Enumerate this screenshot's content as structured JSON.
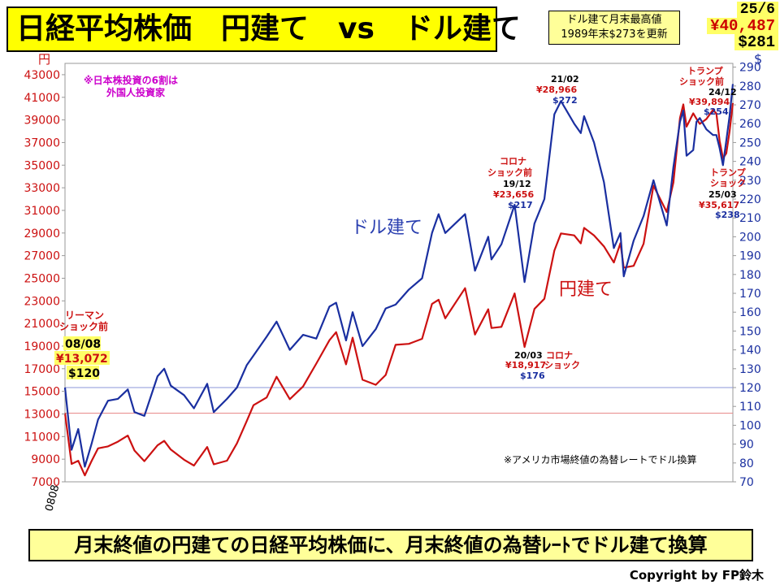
{
  "header": {
    "title": "日経平均株価　円建て　vs　ドル建て",
    "note_line1": "ドル建て月末最高値",
    "note_line2": "1989年末$273を更新",
    "latest_month": "25/6",
    "latest_yen": "¥40,487",
    "latest_usd": "$281"
  },
  "footer": {
    "caption": "月末終値の円建ての日経平均株価に、月末終値の為替ﾚｰﾄでドル建て換算",
    "copyright": "Copyright by FP鈴木"
  },
  "colors": {
    "yen": "#cc1111",
    "usd": "#1a2fa0",
    "ref_yen": "#e88a8a",
    "ref_usd": "#8b95d8"
  },
  "chart_data": {
    "type": "line",
    "title": "日経平均株価　円建て　vs　ドル建て",
    "y_left_unit": "円",
    "y_right_unit": "$",
    "ylim_left": [
      7000,
      44000
    ],
    "ylim_right": [
      70,
      292
    ],
    "y_left_ticks": [
      7000,
      9000,
      11000,
      13000,
      15000,
      17000,
      19000,
      21000,
      23000,
      25000,
      27000,
      29000,
      31000,
      33000,
      35000,
      37000,
      39000,
      41000,
      43000
    ],
    "y_right_ticks": [
      70,
      80,
      90,
      100,
      110,
      120,
      130,
      140,
      150,
      160,
      170,
      180,
      190,
      200,
      210,
      220,
      230,
      240,
      250,
      260,
      270,
      280,
      290
    ],
    "x_tick_label": "0808",
    "x_range": [
      "2008-08",
      "2025-06"
    ],
    "grid": false,
    "series": [
      {
        "name": "円建て",
        "axis": "left",
        "points": [
          [
            "2008-08",
            13072
          ],
          [
            "2008-10",
            8577
          ],
          [
            "2008-12",
            8860
          ],
          [
            "2009-02",
            7568
          ],
          [
            "2009-04",
            8828
          ],
          [
            "2009-06",
            9958
          ],
          [
            "2009-09",
            10134
          ],
          [
            "2009-12",
            10546
          ],
          [
            "2010-03",
            11090
          ],
          [
            "2010-05",
            9768
          ],
          [
            "2010-08",
            8824
          ],
          [
            "2010-12",
            10229
          ],
          [
            "2011-02",
            10624
          ],
          [
            "2011-04",
            9850
          ],
          [
            "2011-08",
            8955
          ],
          [
            "2011-11",
            8435
          ],
          [
            "2012-03",
            10084
          ],
          [
            "2012-05",
            8543
          ],
          [
            "2012-09",
            8870
          ],
          [
            "2012-12",
            10395
          ],
          [
            "2013-03",
            12398
          ],
          [
            "2013-05",
            13775
          ],
          [
            "2013-09",
            14456
          ],
          [
            "2013-12",
            16291
          ],
          [
            "2014-04",
            14304
          ],
          [
            "2014-08",
            15425
          ],
          [
            "2014-12",
            17451
          ],
          [
            "2015-04",
            19520
          ],
          [
            "2015-06",
            20236
          ],
          [
            "2015-09",
            17388
          ],
          [
            "2015-11",
            19747
          ],
          [
            "2016-02",
            16027
          ],
          [
            "2016-06",
            15576
          ],
          [
            "2016-09",
            16450
          ],
          [
            "2016-12",
            19114
          ],
          [
            "2017-04",
            19197
          ],
          [
            "2017-08",
            19646
          ],
          [
            "2017-11",
            22725
          ],
          [
            "2018-01",
            23098
          ],
          [
            "2018-03",
            21454
          ],
          [
            "2018-09",
            24120
          ],
          [
            "2018-12",
            20015
          ],
          [
            "2019-04",
            22259
          ],
          [
            "2019-05",
            20601
          ],
          [
            "2019-08",
            20704
          ],
          [
            "2019-12",
            23656
          ],
          [
            "2020-03",
            18917
          ],
          [
            "2020-06",
            22288
          ],
          [
            "2020-09",
            23185
          ],
          [
            "2020-12",
            27444
          ],
          [
            "2021-02",
            28966
          ],
          [
            "2021-06",
            28791
          ],
          [
            "2021-08",
            28089
          ],
          [
            "2021-09",
            29452
          ],
          [
            "2021-12",
            28791
          ],
          [
            "2022-03",
            27821
          ],
          [
            "2022-06",
            26393
          ],
          [
            "2022-08",
            28091
          ],
          [
            "2022-09",
            25937
          ],
          [
            "2022-12",
            26094
          ],
          [
            "2023-03",
            28041
          ],
          [
            "2023-06",
            33189
          ],
          [
            "2023-10",
            30858
          ],
          [
            "2023-12",
            33464
          ],
          [
            "2024-02",
            39166
          ],
          [
            "2024-03",
            40369
          ],
          [
            "2024-04",
            38405
          ],
          [
            "2024-06",
            39583
          ],
          [
            "2024-07",
            39101
          ],
          [
            "2024-08",
            38647
          ],
          [
            "2024-10",
            39081
          ],
          [
            "2024-12",
            39894
          ],
          [
            "2025-01",
            39572
          ],
          [
            "2025-02",
            37155
          ],
          [
            "2025-03",
            35617
          ],
          [
            "2025-04",
            36045
          ],
          [
            "2025-05",
            37965
          ],
          [
            "2025-06",
            40487
          ]
        ]
      },
      {
        "name": "ドル建て",
        "axis": "right",
        "points": [
          [
            "2008-08",
            120
          ],
          [
            "2008-10",
            87
          ],
          [
            "2008-12",
            98
          ],
          [
            "2009-02",
            78
          ],
          [
            "2009-04",
            90
          ],
          [
            "2009-06",
            103
          ],
          [
            "2009-09",
            113
          ],
          [
            "2009-12",
            114
          ],
          [
            "2010-03",
            119
          ],
          [
            "2010-05",
            107
          ],
          [
            "2010-08",
            105
          ],
          [
            "2010-12",
            126
          ],
          [
            "2011-02",
            130
          ],
          [
            "2011-04",
            121
          ],
          [
            "2011-08",
            116
          ],
          [
            "2011-11",
            109
          ],
          [
            "2012-03",
            122
          ],
          [
            "2012-05",
            107
          ],
          [
            "2012-09",
            114
          ],
          [
            "2012-12",
            120
          ],
          [
            "2013-03",
            132
          ],
          [
            "2013-05",
            137
          ],
          [
            "2013-09",
            147
          ],
          [
            "2013-12",
            155
          ],
          [
            "2014-04",
            140
          ],
          [
            "2014-08",
            148
          ],
          [
            "2014-12",
            146
          ],
          [
            "2015-04",
            163
          ],
          [
            "2015-06",
            165
          ],
          [
            "2015-09",
            145
          ],
          [
            "2015-11",
            160
          ],
          [
            "2016-02",
            142
          ],
          [
            "2016-06",
            151
          ],
          [
            "2016-09",
            162
          ],
          [
            "2016-12",
            164
          ],
          [
            "2017-04",
            172
          ],
          [
            "2017-08",
            178
          ],
          [
            "2017-11",
            202
          ],
          [
            "2018-01",
            212
          ],
          [
            "2018-03",
            202
          ],
          [
            "2018-09",
            212
          ],
          [
            "2018-12",
            182
          ],
          [
            "2019-04",
            200
          ],
          [
            "2019-05",
            188
          ],
          [
            "2019-08",
            196
          ],
          [
            "2019-12",
            217
          ],
          [
            "2020-03",
            176
          ],
          [
            "2020-06",
            207
          ],
          [
            "2020-09",
            220
          ],
          [
            "2020-12",
            265
          ],
          [
            "2021-02",
            272
          ],
          [
            "2021-06",
            260
          ],
          [
            "2021-08",
            255
          ],
          [
            "2021-09",
            264
          ],
          [
            "2021-12",
            250
          ],
          [
            "2022-03",
            229
          ],
          [
            "2022-06",
            194
          ],
          [
            "2022-08",
            202
          ],
          [
            "2022-09",
            179
          ],
          [
            "2022-12",
            198
          ],
          [
            "2023-03",
            211
          ],
          [
            "2023-06",
            230
          ],
          [
            "2023-10",
            206
          ],
          [
            "2023-12",
            237
          ],
          [
            "2024-02",
            261
          ],
          [
            "2024-03",
            267
          ],
          [
            "2024-04",
            243
          ],
          [
            "2024-06",
            246
          ],
          [
            "2024-07",
            261
          ],
          [
            "2024-08",
            263
          ],
          [
            "2024-10",
            257
          ],
          [
            "2024-12",
            254
          ],
          [
            "2025-01",
            254
          ],
          [
            "2025-02",
            247
          ],
          [
            "2025-03",
            238
          ],
          [
            "2025-04",
            251
          ],
          [
            "2025-05",
            264
          ],
          [
            "2025-06",
            281
          ]
        ]
      }
    ],
    "reference_lines": [
      {
        "axis": "left",
        "value": 13072
      },
      {
        "axis": "right",
        "value": 120
      }
    ],
    "annotations": {
      "tl_note": [
        "※日本株投資の6割は",
        "外国人投資家"
      ],
      "lehman": [
        "リーマン",
        "ショック前"
      ],
      "start": {
        "date": "08/08",
        "yen": "¥13,072",
        "usd": "$120"
      },
      "corona_pre": {
        "l1": "コロナ",
        "l2": "ショック前",
        "date": "19/12",
        "yen": "¥23,656",
        "usd": "$217"
      },
      "peak": {
        "date": "21/02",
        "yen": "¥28,966",
        "usd": "$272"
      },
      "corona_low": {
        "date": "20/03",
        "label": "コロナ",
        "label2": "ショック",
        "yen": "¥18,917",
        "usd": "$176"
      },
      "trump_pre": {
        "l1": "トランプ",
        "l2": "ショック前",
        "date": "24/12",
        "yen": "¥39,894",
        "usd": "$254"
      },
      "trump": {
        "l1": "トランプ",
        "l2": "ショック",
        "date": "25/03",
        "yen": "¥35,617",
        "usd": "$238"
      },
      "label_usd": "ドル建て",
      "label_yen": "円建て",
      "fx_note": "※アメリカ市場終値の為替レートでドル換算"
    }
  }
}
